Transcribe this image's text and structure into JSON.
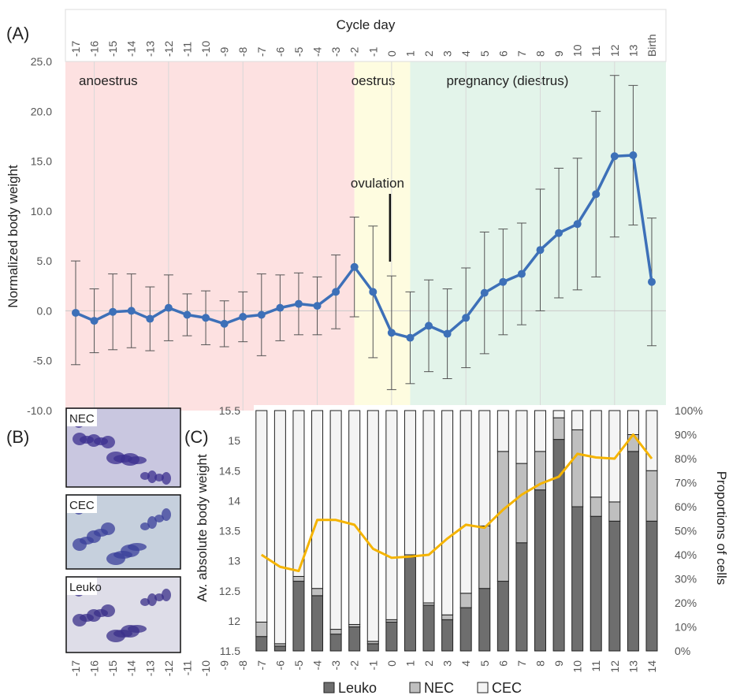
{
  "chart_data": [
    {
      "type": "line",
      "panel_label": "(A)",
      "x_label": "Cycle day",
      "y_label": "Normalized body weight",
      "categories": [
        "-17",
        "-16",
        "-15",
        "-14",
        "-13",
        "-12",
        "-11",
        "-10",
        "-9",
        "-8",
        "-7",
        "-6",
        "-5",
        "-4",
        "-3",
        "-2",
        "-1",
        "0",
        "1",
        "2",
        "3",
        "4",
        "5",
        "6",
        "7",
        "8",
        "9",
        "10",
        "11",
        "12",
        "13",
        "Birth"
      ],
      "series": [
        {
          "color": "#3d70b8",
          "error_color": "#555555",
          "values": [
            -0.2,
            -1.0,
            -0.1,
            0.0,
            -0.8,
            0.3,
            -0.4,
            -0.7,
            -1.3,
            -0.6,
            -0.4,
            0.3,
            0.7,
            0.5,
            1.9,
            4.4,
            1.9,
            -2.2,
            -2.7,
            -1.5,
            -2.3,
            -0.7,
            1.8,
            2.9,
            3.7,
            6.1,
            7.8,
            8.7,
            11.7,
            15.5,
            15.6,
            2.9
          ],
          "errors": [
            5.2,
            3.2,
            3.8,
            3.7,
            3.2,
            3.3,
            2.1,
            2.7,
            2.3,
            2.5,
            4.1,
            3.3,
            3.1,
            2.9,
            3.7,
            5.0,
            6.6,
            5.7,
            4.6,
            4.6,
            4.5,
            5.0,
            6.1,
            5.3,
            5.1,
            6.1,
            6.5,
            6.6,
            8.3,
            8.1,
            7.0,
            6.4
          ]
        }
      ],
      "ylim": [
        -10,
        25
      ],
      "yticks": [
        {
          "value": -10,
          "label": "-10.0"
        },
        {
          "value": -5,
          "label": "-5.0"
        },
        {
          "value": 0,
          "label": "0.0"
        },
        {
          "value": 5,
          "label": "5.0"
        },
        {
          "value": 10,
          "label": "10.0"
        },
        {
          "value": 15,
          "label": "15.0"
        },
        {
          "value": 20,
          "label": "20.0"
        },
        {
          "value": 25,
          "label": "25.0"
        }
      ],
      "regions": [
        {
          "label": "anoestrus",
          "start": "-17",
          "end": "-2",
          "color": "#fde1e1"
        },
        {
          "label": "oestrus",
          "start": "-2",
          "end": "1",
          "color": "#fefce0"
        },
        {
          "label": "pregnancy (diestrus)",
          "start": "1",
          "end": "Birth",
          "color": "#e3f4ea"
        }
      ],
      "annotation": {
        "text": "ovulation",
        "category": "0"
      }
    },
    {
      "type": "stacked_bar",
      "panel_label": "(C)",
      "y_label": "Av. absolute body weight",
      "y2_label": "Proportions of cells",
      "categories": [
        "-17",
        "-16",
        "-15",
        "-14",
        "-13",
        "-12",
        "-11",
        "-10",
        "-9",
        "-8",
        "-7",
        "-6",
        "-5",
        "-4",
        "-3",
        "-2",
        "-1",
        "0",
        "1",
        "2",
        "3",
        "4",
        "5",
        "6",
        "7",
        "8",
        "9",
        "10",
        "11",
        "12",
        "13",
        "14"
      ],
      "series": [
        {
          "name": "Leuko",
          "color": "#6e6e6e",
          "axis": "y2",
          "values": [
            null,
            null,
            null,
            null,
            null,
            null,
            null,
            null,
            null,
            null,
            6,
            2,
            29,
            23,
            7,
            10,
            3,
            12,
            39,
            19,
            13,
            18,
            26,
            29,
            45,
            67,
            88,
            60,
            56,
            54,
            83,
            54
          ]
        },
        {
          "name": "NEC",
          "color": "#bfbfbf",
          "axis": "y2",
          "values": [
            null,
            null,
            null,
            null,
            null,
            null,
            null,
            null,
            null,
            null,
            6,
            1,
            2,
            3,
            2,
            1,
            1,
            1,
            1,
            1,
            2,
            6,
            26,
            54,
            33,
            16,
            9,
            32,
            8,
            8,
            7,
            21
          ]
        },
        {
          "name": "CEC",
          "color": "#f4f4f4",
          "axis": "y2",
          "values": [
            null,
            null,
            null,
            null,
            null,
            null,
            null,
            null,
            null,
            null,
            88,
            97,
            69,
            74,
            91,
            89,
            96,
            87,
            60,
            80,
            85,
            76,
            48,
            17,
            22,
            17,
            3,
            8,
            36,
            38,
            10,
            25
          ]
        }
      ],
      "line": {
        "color": "#f5b400",
        "values": [
          null,
          null,
          null,
          null,
          null,
          null,
          null,
          null,
          null,
          null,
          13.1,
          12.9,
          12.83,
          13.68,
          13.68,
          13.6,
          13.2,
          13.05,
          13.07,
          13.1,
          13.37,
          13.6,
          13.55,
          13.85,
          14.1,
          14.28,
          14.4,
          14.78,
          14.72,
          14.7,
          15.1,
          14.7
        ]
      },
      "ylim": [
        11.5,
        15.5
      ],
      "yticks": [
        11.5,
        12,
        12.5,
        13,
        13.5,
        14,
        14.5,
        15,
        15.5
      ],
      "y2lim": [
        0,
        100
      ],
      "y2ticks": [
        {
          "value": 0,
          "label": "0%"
        },
        {
          "value": 10,
          "label": "10%"
        },
        {
          "value": 20,
          "label": "20%"
        },
        {
          "value": 30,
          "label": "30%"
        },
        {
          "value": 40,
          "label": "40%"
        },
        {
          "value": 50,
          "label": "50%"
        },
        {
          "value": 60,
          "label": "60%"
        },
        {
          "value": 70,
          "label": "70%"
        },
        {
          "value": 80,
          "label": "80%"
        },
        {
          "value": 90,
          "label": "90%"
        },
        {
          "value": 100,
          "label": "100%"
        }
      ]
    }
  ],
  "panel_b": {
    "panel_label": "(B)",
    "images": [
      "NEC",
      "CEC",
      "Leuko"
    ]
  }
}
